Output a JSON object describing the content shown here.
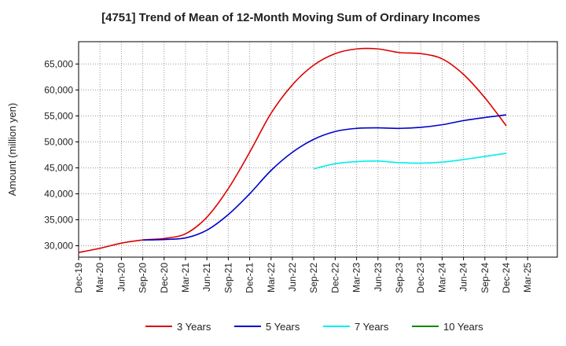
{
  "chart_data": {
    "type": "line",
    "title": "[4751]  Trend of Mean of 12-Month Moving Sum of Ordinary Incomes",
    "xlabel": "",
    "ylabel": "Amount (million yen)",
    "ylim": [
      27800,
      69300
    ],
    "yticks": [
      30000,
      35000,
      40000,
      45000,
      50000,
      55000,
      60000,
      65000
    ],
    "ytick_labels": [
      "30,000",
      "35,000",
      "40,000",
      "45,000",
      "50,000",
      "55,000",
      "60,000",
      "65,000"
    ],
    "x_tick_labels": [
      "Dec-19",
      "Mar-20",
      "Jun-20",
      "Sep-20",
      "Dec-20",
      "Mar-21",
      "Jun-21",
      "Sep-21",
      "Dec-21",
      "Mar-22",
      "Jun-22",
      "Sep-22",
      "Dec-22",
      "Mar-23",
      "Jun-23",
      "Sep-23",
      "Dec-23",
      "Mar-24",
      "Jun-24",
      "Sep-24",
      "Dec-24",
      "Mar-25"
    ],
    "x_unit": "quarter index (0 = Dec-19)",
    "grid": true,
    "legend_position": "bottom",
    "series": [
      {
        "name": "3 Years",
        "color": "#dd0000",
        "x": [
          0,
          1,
          2,
          3,
          4,
          5,
          6,
          7,
          8,
          9,
          10,
          11,
          12,
          13,
          14,
          15,
          16,
          17,
          18,
          19,
          20
        ],
        "values": [
          28700,
          29500,
          30500,
          31100,
          31400,
          32300,
          35500,
          41000,
          48000,
          55500,
          61000,
          64800,
          67000,
          67900,
          67900,
          67200,
          67000,
          66000,
          63000,
          58500,
          53100
        ]
      },
      {
        "name": "5 Years",
        "color": "#0000cc",
        "x": [
          3,
          4,
          5,
          6,
          7,
          8,
          9,
          10,
          11,
          12,
          13,
          14,
          15,
          16,
          17,
          18,
          19,
          20
        ],
        "values": [
          31100,
          31200,
          31500,
          33000,
          36000,
          40000,
          44500,
          48000,
          50500,
          52000,
          52600,
          52700,
          52600,
          52800,
          53300,
          54100,
          54700,
          55200
        ]
      },
      {
        "name": "7 Years",
        "color": "#00eeee",
        "x": [
          11,
          12,
          13,
          14,
          15,
          16,
          17,
          18,
          19,
          20
        ],
        "values": [
          44800,
          45800,
          46200,
          46300,
          46000,
          45900,
          46100,
          46600,
          47200,
          47800
        ]
      },
      {
        "name": "10 Years",
        "color": "#008800",
        "x": [],
        "values": []
      }
    ]
  }
}
